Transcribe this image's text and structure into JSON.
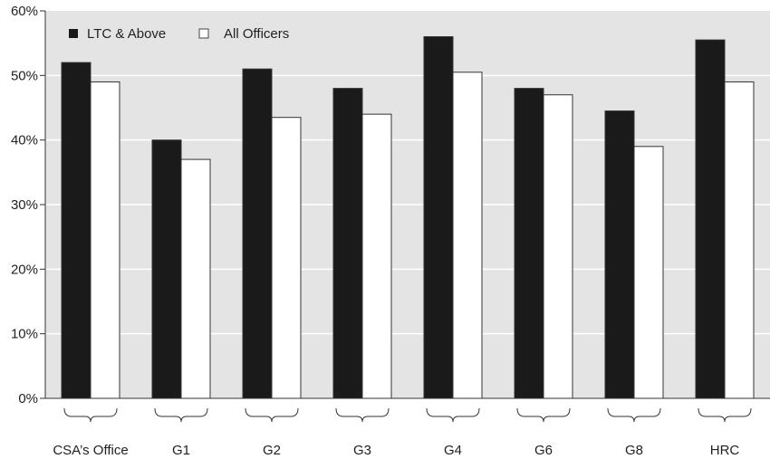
{
  "chart_data": {
    "type": "bar",
    "categories": [
      "CSA’s Office",
      "G1",
      "G2",
      "G3",
      "G4",
      "G6",
      "G8",
      "HRC"
    ],
    "series": [
      {
        "name": "LTC & Above",
        "values": [
          52,
          40,
          51,
          48,
          56,
          48,
          44.5,
          55.5
        ],
        "color": "#1a1a1a"
      },
      {
        "name": "All Officers",
        "values": [
          49,
          37,
          43.5,
          44,
          50.5,
          47,
          39,
          49
        ],
        "color": "#ffffff"
      }
    ],
    "ylim": [
      0,
      60
    ],
    "yticks": [
      "0%",
      "10%",
      "20%",
      "30%",
      "40%",
      "50%",
      "60%"
    ],
    "title": "",
    "xlabel": "",
    "ylabel": "",
    "grid": true,
    "legend_position": "top-left",
    "plot_background": "#e4e4e4",
    "grid_color": "#ffffff"
  }
}
